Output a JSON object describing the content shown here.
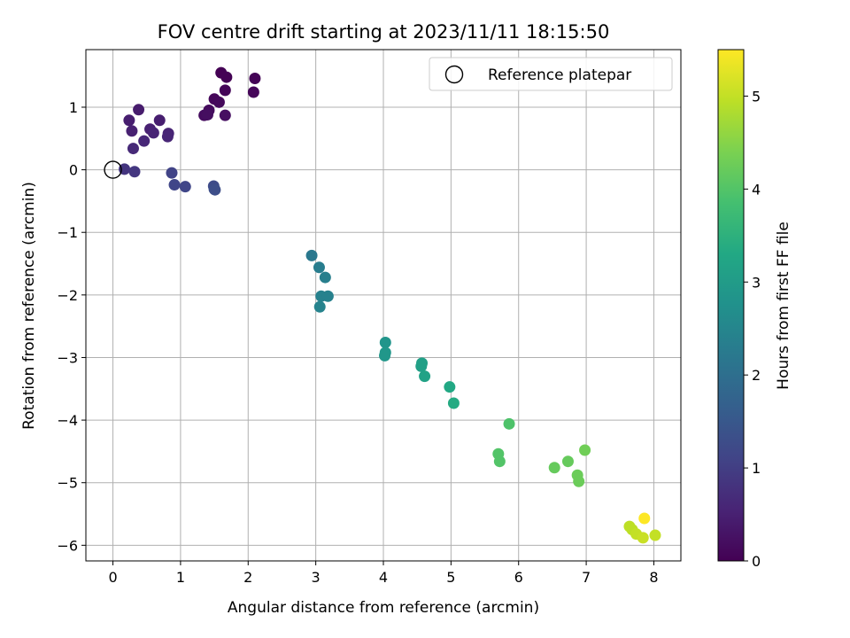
{
  "chart_data": {
    "type": "scatter",
    "title": "FOV centre drift starting at 2023/11/11 18:15:50",
    "xlabel": "Angular distance from reference (arcmin)",
    "ylabel": "Rotation from reference (arcmin)",
    "xlim": [
      -0.4,
      8.4
    ],
    "ylim": [
      -6.25,
      1.92
    ],
    "xticks": [
      0,
      1,
      2,
      3,
      4,
      5,
      6,
      7,
      8
    ],
    "yticks": [
      1,
      0,
      -1,
      -2,
      -3,
      -4,
      -5,
      -6
    ],
    "xtick_labels": [
      "0",
      "1",
      "2",
      "3",
      "4",
      "5",
      "6",
      "7",
      "8"
    ],
    "ytick_labels": [
      "1",
      "0",
      "−1",
      "−2",
      "−3",
      "−4",
      "−5",
      "−6"
    ],
    "grid": true,
    "legend": {
      "placement": "top-right",
      "entries": [
        {
          "label": "Reference platepar",
          "marker": "open-circle"
        }
      ]
    },
    "reference": {
      "x": 0,
      "y": 0
    },
    "colorbar": {
      "label": "Hours from first FF file",
      "colormap": "viridis",
      "range": [
        0,
        5.5
      ],
      "ticks": [
        0,
        1,
        2,
        3,
        4,
        5
      ],
      "tick_labels": [
        "0",
        "1",
        "2",
        "3",
        "4",
        "5"
      ]
    },
    "points": [
      {
        "x": 1.6,
        "y": 1.55,
        "h": 0.0
      },
      {
        "x": 1.68,
        "y": 1.48,
        "h": 0.02
      },
      {
        "x": 2.1,
        "y": 1.46,
        "h": 0.04
      },
      {
        "x": 1.66,
        "y": 1.27,
        "h": 0.06
      },
      {
        "x": 2.08,
        "y": 1.24,
        "h": 0.08
      },
      {
        "x": 1.5,
        "y": 1.13,
        "h": 0.1
      },
      {
        "x": 1.57,
        "y": 1.08,
        "h": 0.12
      },
      {
        "x": 1.42,
        "y": 0.95,
        "h": 0.15
      },
      {
        "x": 1.35,
        "y": 0.87,
        "h": 0.18
      },
      {
        "x": 1.4,
        "y": 0.88,
        "h": 0.2
      },
      {
        "x": 1.66,
        "y": 0.87,
        "h": 0.22
      },
      {
        "x": 0.38,
        "y": 0.96,
        "h": 0.42
      },
      {
        "x": 0.24,
        "y": 0.79,
        "h": 0.45
      },
      {
        "x": 0.69,
        "y": 0.79,
        "h": 0.45
      },
      {
        "x": 0.28,
        "y": 0.62,
        "h": 0.5
      },
      {
        "x": 0.55,
        "y": 0.65,
        "h": 0.5
      },
      {
        "x": 0.6,
        "y": 0.59,
        "h": 0.55
      },
      {
        "x": 0.82,
        "y": 0.58,
        "h": 0.55
      },
      {
        "x": 0.81,
        "y": 0.53,
        "h": 0.58
      },
      {
        "x": 0.46,
        "y": 0.46,
        "h": 0.6
      },
      {
        "x": 0.3,
        "y": 0.34,
        "h": 0.65
      },
      {
        "x": 0.17,
        "y": 0.01,
        "h": 0.85
      },
      {
        "x": 0.32,
        "y": -0.03,
        "h": 0.88
      },
      {
        "x": 0.87,
        "y": -0.05,
        "h": 1.1
      },
      {
        "x": 0.91,
        "y": -0.24,
        "h": 1.15
      },
      {
        "x": 1.07,
        "y": -0.27,
        "h": 1.15
      },
      {
        "x": 1.49,
        "y": -0.26,
        "h": 1.25
      },
      {
        "x": 1.5,
        "y": -0.31,
        "h": 1.28
      },
      {
        "x": 1.51,
        "y": -0.32,
        "h": 1.3
      },
      {
        "x": 2.94,
        "y": -1.37,
        "h": 2.2
      },
      {
        "x": 3.05,
        "y": -1.56,
        "h": 2.3
      },
      {
        "x": 3.14,
        "y": -1.72,
        "h": 2.35
      },
      {
        "x": 3.08,
        "y": -2.02,
        "h": 2.4
      },
      {
        "x": 3.18,
        "y": -2.02,
        "h": 2.4
      },
      {
        "x": 3.06,
        "y": -2.19,
        "h": 2.45
      },
      {
        "x": 4.03,
        "y": -2.76,
        "h": 2.85
      },
      {
        "x": 4.03,
        "y": -2.92,
        "h": 2.9
      },
      {
        "x": 4.02,
        "y": -2.97,
        "h": 2.9
      },
      {
        "x": 4.57,
        "y": -3.09,
        "h": 3.1
      },
      {
        "x": 4.56,
        "y": -3.14,
        "h": 3.1
      },
      {
        "x": 4.61,
        "y": -3.3,
        "h": 3.15
      },
      {
        "x": 4.98,
        "y": -3.47,
        "h": 3.3
      },
      {
        "x": 5.04,
        "y": -3.73,
        "h": 3.35
      },
      {
        "x": 5.86,
        "y": -4.06,
        "h": 3.95
      },
      {
        "x": 5.7,
        "y": -4.54,
        "h": 4.0
      },
      {
        "x": 5.72,
        "y": -4.66,
        "h": 4.0
      },
      {
        "x": 6.53,
        "y": -4.76,
        "h": 4.2
      },
      {
        "x": 6.73,
        "y": -4.66,
        "h": 4.2
      },
      {
        "x": 6.98,
        "y": -4.48,
        "h": 4.3
      },
      {
        "x": 6.87,
        "y": -4.88,
        "h": 4.25
      },
      {
        "x": 6.89,
        "y": -4.98,
        "h": 4.25
      },
      {
        "x": 7.64,
        "y": -5.7,
        "h": 4.95
      },
      {
        "x": 7.68,
        "y": -5.75,
        "h": 4.95
      },
      {
        "x": 7.74,
        "y": -5.82,
        "h": 5.0
      },
      {
        "x": 7.84,
        "y": -5.88,
        "h": 5.05
      },
      {
        "x": 8.02,
        "y": -5.84,
        "h": 5.0
      },
      {
        "x": 7.86,
        "y": -5.57,
        "h": 5.5
      }
    ]
  }
}
